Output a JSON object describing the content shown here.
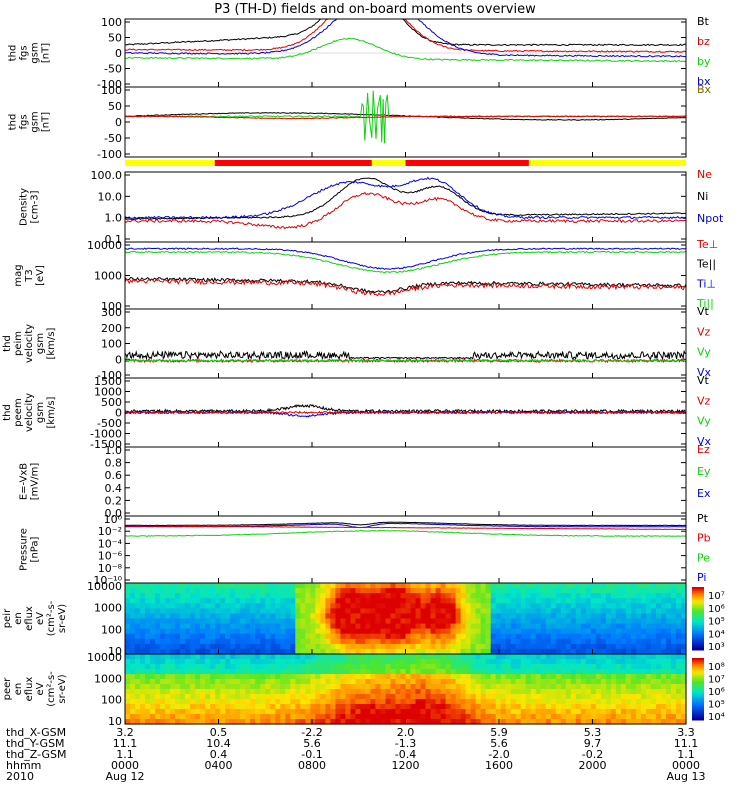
{
  "title": "P3 (TH-D) fields and on-board moments overview",
  "colors": {
    "black": "#000000",
    "red": "#e00000",
    "green": "#10d010",
    "blue": "#0000e0",
    "yellow": "#ffff00",
    "barred": "#ff0000"
  },
  "chart_data": [
    {
      "id": "fgs",
      "type": "line",
      "ylabel": [
        "thd",
        "fgs",
        "gsm",
        "[nT]"
      ],
      "yticks": [
        "100",
        "50",
        "0",
        "-50",
        "-100"
      ],
      "ylim": [
        -100,
        100
      ],
      "legend": [
        {
          "name": "Bt",
          "color": "#000000"
        },
        {
          "name": "bz",
          "color": "#e00000"
        },
        {
          "name": "by",
          "color": "#10d010"
        },
        {
          "name": "bx",
          "color": "#0000e0"
        }
      ]
    },
    {
      "id": "fgs_dsl",
      "type": "line",
      "ylabel": [
        "thd",
        "fgs",
        "gsm",
        "[nT]"
      ],
      "yticks": [
        "100",
        "50",
        "0",
        "-50",
        "-100"
      ],
      "ylim": [
        -120,
        100
      ],
      "legend": [
        {
          "name": "Bx",
          "color": "#806000"
        }
      ]
    },
    {
      "id": "density",
      "type": "line",
      "ylabel": [
        "Density",
        "[cm-3]"
      ],
      "yticks": [
        "100.0",
        "10.0",
        "1.0",
        "0.1"
      ],
      "scale": "log",
      "legend": [
        {
          "name": "Ne",
          "color": "#e00000"
        },
        {
          "name": "Ni",
          "color": "#000000"
        },
        {
          "name": "Npot",
          "color": "#0000e0"
        }
      ]
    },
    {
      "id": "temperature",
      "type": "line",
      "ylabel": [
        "mag",
        "T3",
        "[eV]"
      ],
      "yticks": [
        "10000",
        "1000",
        "100"
      ],
      "scale": "log",
      "legend": [
        {
          "name": "Te⊥",
          "color": "#e00000"
        },
        {
          "name": "Te||",
          "color": "#000000"
        },
        {
          "name": "Ti⊥",
          "color": "#0000e0"
        },
        {
          "name": "Ti||",
          "color": "#10d010"
        }
      ]
    },
    {
      "id": "peim_velocity",
      "type": "line",
      "ylabel": [
        "thd",
        "peim",
        "velocity",
        "gsm",
        "[km/s]"
      ],
      "yticks": [
        "300",
        "200",
        "100",
        "0",
        "-100"
      ],
      "ylim": [
        -100,
        300
      ],
      "legend": [
        {
          "name": "Vt",
          "color": "#000000"
        },
        {
          "name": "Vz",
          "color": "#e00000"
        },
        {
          "name": "Vy",
          "color": "#10d010"
        },
        {
          "name": "Vx",
          "color": "#0000e0"
        }
      ]
    },
    {
      "id": "peem_velocity",
      "type": "line",
      "ylabel": [
        "thd",
        "peem",
        "velocity",
        "gsm",
        "[km/s]"
      ],
      "yticks": [
        "1500",
        "1000",
        "500",
        "0",
        "-500",
        "-1000",
        "-1500"
      ],
      "ylim": [
        -1500,
        1500
      ],
      "legend": [
        {
          "name": "Vt",
          "color": "#000000"
        },
        {
          "name": "Vz",
          "color": "#e00000"
        },
        {
          "name": "Vy",
          "color": "#10d010"
        },
        {
          "name": "Vx",
          "color": "#0000e0"
        }
      ]
    },
    {
      "id": "efield",
      "type": "line",
      "ylabel": [
        "E=-VxB",
        "[mV/m]"
      ],
      "yticks": [
        "1.0",
        "0.8",
        "0.6",
        "0.4",
        "0.2",
        "0.0"
      ],
      "ylim": [
        0,
        1
      ],
      "legend": [
        {
          "name": "Ez",
          "color": "#e00000"
        },
        {
          "name": "Ey",
          "color": "#10d010"
        },
        {
          "name": "Ex",
          "color": "#0000e0"
        }
      ]
    },
    {
      "id": "pressure",
      "type": "line",
      "ylabel": [
        "Pressure",
        "[nPa]"
      ],
      "yticks": [
        "10⁰",
        "10⁻²",
        "10⁻⁴",
        "10⁻⁶",
        "10⁻⁸",
        "10⁻¹⁰"
      ],
      "scale": "log",
      "legend": [
        {
          "name": "Pt",
          "color": "#000000"
        },
        {
          "name": "Pb",
          "color": "#e00000"
        },
        {
          "name": "Pe",
          "color": "#10d010"
        },
        {
          "name": "Pi",
          "color": "#0000e0"
        }
      ]
    },
    {
      "id": "peir_eflux",
      "type": "heatmap",
      "ylabel": [
        "thd",
        "peir",
        "en",
        "eflux",
        "eV",
        "(cm²-s-",
        "sr-eV)"
      ],
      "yticks": [
        "10000",
        "1000",
        "100",
        "10"
      ],
      "colorbar": [
        "10⁷",
        "10⁶",
        "10⁵",
        "10⁴",
        "10³"
      ]
    },
    {
      "id": "peer_eflux",
      "type": "heatmap",
      "ylabel": [
        "thd",
        "peer",
        "en",
        "eflux",
        "eV",
        "(cm²-s-",
        "sr-eV)"
      ],
      "yticks": [
        "10000",
        "1000",
        "100",
        "10"
      ],
      "colorbar": [
        "10⁸",
        "10⁷",
        "10⁶",
        "10⁵",
        "10⁴"
      ]
    }
  ],
  "footer": {
    "rows": [
      "thd_X-GSM",
      "thd_Y-GSM",
      "thd_Z-GSM",
      "hhmm",
      "2010"
    ],
    "columns": [
      {
        "x": "3.2",
        "y": "11.1",
        "z": "1.1",
        "hhmm": "0000",
        "date": "Aug 12"
      },
      {
        "x": "0.5",
        "y": "10.4",
        "z": "0.4",
        "hhmm": "0400",
        "date": ""
      },
      {
        "x": "-2.2",
        "y": "5.6",
        "z": "-0.1",
        "hhmm": "0800",
        "date": ""
      },
      {
        "x": "2.0",
        "y": "-1.3",
        "z": "-0.4",
        "hhmm": "1200",
        "date": ""
      },
      {
        "x": "5.9",
        "y": "5.6",
        "z": "-2.0",
        "hhmm": "1600",
        "date": ""
      },
      {
        "x": "5.3",
        "y": "9.7",
        "z": "-0.2",
        "hhmm": "2000",
        "date": ""
      },
      {
        "x": "3.3",
        "y": "11.1",
        "z": "1.1",
        "hhmm": "0000",
        "date": "Aug 13"
      }
    ]
  }
}
